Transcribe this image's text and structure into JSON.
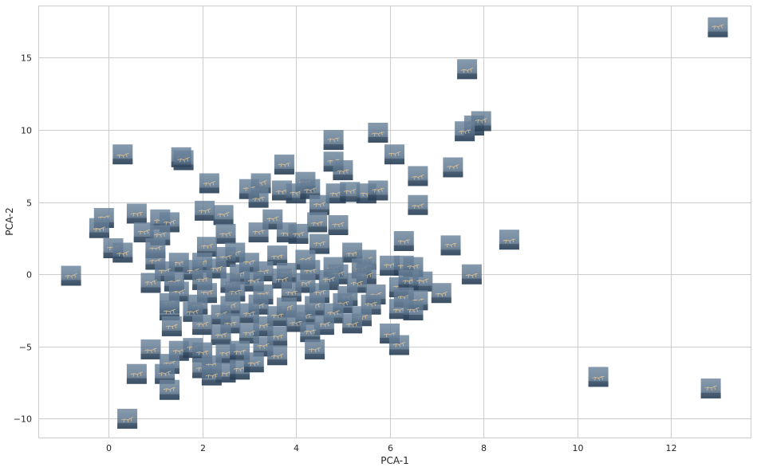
{
  "chart_data": {
    "type": "scatter",
    "title": "",
    "xlabel": "PCA-1",
    "ylabel": "PCA-2",
    "xlim": [
      -1.5,
      13.7
    ],
    "ylim": [
      -11.3,
      18.6
    ],
    "xticks": [
      0,
      2,
      4,
      6,
      8,
      10,
      12
    ],
    "yticks": [
      -10,
      -5,
      0,
      5,
      10,
      15
    ],
    "grid": true,
    "legend": "none",
    "marker": "image-thumbnail",
    "colors": {
      "thumb_fill": "#5f7891",
      "thumb_dark": "#22384f",
      "thumb_edge": "#3b536b",
      "sketch": "#e8c893",
      "grid": "#cccccc",
      "background": "#ffffff"
    },
    "points": [
      [
        13.0,
        17.1
      ],
      [
        7.65,
        14.2
      ],
      [
        7.8,
        10.3
      ],
      [
        7.95,
        10.6
      ],
      [
        7.6,
        9.9
      ],
      [
        4.8,
        9.3
      ],
      [
        5.75,
        9.8
      ],
      [
        6.1,
        8.3
      ],
      [
        0.3,
        8.3
      ],
      [
        1.55,
        8.1
      ],
      [
        1.6,
        7.9
      ],
      [
        3.75,
        7.6
      ],
      [
        4.8,
        7.8
      ],
      [
        5.0,
        7.2
      ],
      [
        7.35,
        7.4
      ],
      [
        6.6,
        6.8
      ],
      [
        2.15,
        6.3
      ],
      [
        3.25,
        6.3
      ],
      [
        4.2,
        6.4
      ],
      [
        3.0,
        5.9
      ],
      [
        3.7,
        5.8
      ],
      [
        4.0,
        5.6
      ],
      [
        4.3,
        5.9
      ],
      [
        4.85,
        5.6
      ],
      [
        5.15,
        5.7
      ],
      [
        5.5,
        5.6
      ],
      [
        5.75,
        5.8
      ],
      [
        3.2,
        5.3
      ],
      [
        4.5,
        4.8
      ],
      [
        6.6,
        4.8
      ],
      [
        2.05,
        4.4
      ],
      [
        2.45,
        4.1
      ],
      [
        0.6,
        4.2
      ],
      [
        -0.1,
        3.9
      ],
      [
        1.1,
        3.8
      ],
      [
        3.5,
        3.8
      ],
      [
        -0.2,
        3.2
      ],
      [
        1.3,
        3.6
      ],
      [
        0.75,
        2.9
      ],
      [
        2.5,
        2.8
      ],
      [
        3.2,
        2.9
      ],
      [
        4.45,
        3.6
      ],
      [
        4.9,
        3.4
      ],
      [
        3.8,
        2.9
      ],
      [
        4.05,
        2.8
      ],
      [
        1.1,
        2.7
      ],
      [
        6.3,
        2.3
      ],
      [
        7.3,
        2.0
      ],
      [
        8.55,
        2.4
      ],
      [
        0.1,
        1.8
      ],
      [
        0.3,
        1.5
      ],
      [
        1.0,
        1.8
      ],
      [
        2.1,
        1.9
      ],
      [
        2.7,
        1.5
      ],
      [
        4.5,
        2.1
      ],
      [
        5.2,
        1.5
      ],
      [
        5.5,
        1.0
      ],
      [
        1.0,
        1.0
      ],
      [
        1.5,
        0.8
      ],
      [
        2.0,
        0.8
      ],
      [
        2.5,
        1.2
      ],
      [
        3.0,
        0.8
      ],
      [
        3.6,
        1.3
      ],
      [
        4.2,
        1.0
      ],
      [
        4.8,
        0.5
      ],
      [
        5.4,
        0.4
      ],
      [
        6.0,
        0.6
      ],
      [
        6.3,
        0.6
      ],
      [
        6.5,
        0.5
      ],
      [
        7.75,
        0.0
      ],
      [
        1.2,
        0.2
      ],
      [
        1.8,
        0.3
      ],
      [
        2.3,
        0.4
      ],
      [
        2.8,
        0.0
      ],
      [
        3.3,
        0.2
      ],
      [
        3.8,
        0.1
      ],
      [
        4.3,
        0.3
      ],
      [
        4.9,
        0.0
      ],
      [
        5.5,
        0.0
      ],
      [
        -0.8,
        -0.1
      ],
      [
        0.9,
        -0.6
      ],
      [
        1.4,
        -0.5
      ],
      [
        2.0,
        -0.4
      ],
      [
        2.6,
        -0.6
      ],
      [
        3.1,
        -0.5
      ],
      [
        3.7,
        -0.3
      ],
      [
        4.2,
        -0.6
      ],
      [
        4.7,
        -0.4
      ],
      [
        5.3,
        -0.6
      ],
      [
        6.2,
        -0.9
      ],
      [
        6.4,
        -0.4
      ],
      [
        6.7,
        -0.5
      ],
      [
        7.1,
        -1.3
      ],
      [
        1.5,
        -1.2
      ],
      [
        2.1,
        -1.3
      ],
      [
        2.7,
        -1.2
      ],
      [
        3.3,
        -1.4
      ],
      [
        3.9,
        -1.2
      ],
      [
        4.5,
        -1.3
      ],
      [
        5.1,
        -1.5
      ],
      [
        5.7,
        -1.4
      ],
      [
        6.3,
        -1.6
      ],
      [
        6.6,
        -1.8
      ],
      [
        1.3,
        -2.0
      ],
      [
        1.9,
        -2.1
      ],
      [
        2.6,
        -2.2
      ],
      [
        3.2,
        -2.1
      ],
      [
        3.8,
        -2.3
      ],
      [
        4.4,
        -2.2
      ],
      [
        5.0,
        -2.0
      ],
      [
        5.6,
        -2.1
      ],
      [
        6.2,
        -2.4
      ],
      [
        6.5,
        -2.5
      ],
      [
        1.3,
        -2.5
      ],
      [
        1.8,
        -2.6
      ],
      [
        2.4,
        -2.8
      ],
      [
        3.0,
        -2.7
      ],
      [
        3.6,
        -2.9
      ],
      [
        4.2,
        -2.8
      ],
      [
        4.8,
        -2.7
      ],
      [
        5.4,
        -2.9
      ],
      [
        1.35,
        -3.6
      ],
      [
        2.0,
        -3.5
      ],
      [
        2.6,
        -3.4
      ],
      [
        3.3,
        -3.6
      ],
      [
        4.0,
        -3.3
      ],
      [
        4.6,
        -3.5
      ],
      [
        5.2,
        -3.4
      ],
      [
        2.4,
        -4.2
      ],
      [
        3.0,
        -4.1
      ],
      [
        3.6,
        -4.3
      ],
      [
        4.3,
        -4.0
      ],
      [
        6.0,
        -4.1
      ],
      [
        6.2,
        -4.9
      ],
      [
        0.9,
        -5.2
      ],
      [
        1.5,
        -5.3
      ],
      [
        1.8,
        -5.1
      ],
      [
        2.0,
        -5.4
      ],
      [
        2.5,
        -5.5
      ],
      [
        2.8,
        -5.3
      ],
      [
        3.3,
        -5.0
      ],
      [
        3.6,
        -5.6
      ],
      [
        4.4,
        -5.2
      ],
      [
        1.3,
        -6.2
      ],
      [
        2.0,
        -6.5
      ],
      [
        2.2,
        -6.3
      ],
      [
        2.5,
        -6.8
      ],
      [
        2.8,
        -6.6
      ],
      [
        3.1,
        -6.1
      ],
      [
        0.6,
        -6.9
      ],
      [
        1.2,
        -6.9
      ],
      [
        2.2,
        -7.0
      ],
      [
        1.3,
        -8.0
      ],
      [
        10.45,
        -7.1
      ],
      [
        12.85,
        -7.9
      ],
      [
        0.4,
        -10.0
      ]
    ]
  }
}
